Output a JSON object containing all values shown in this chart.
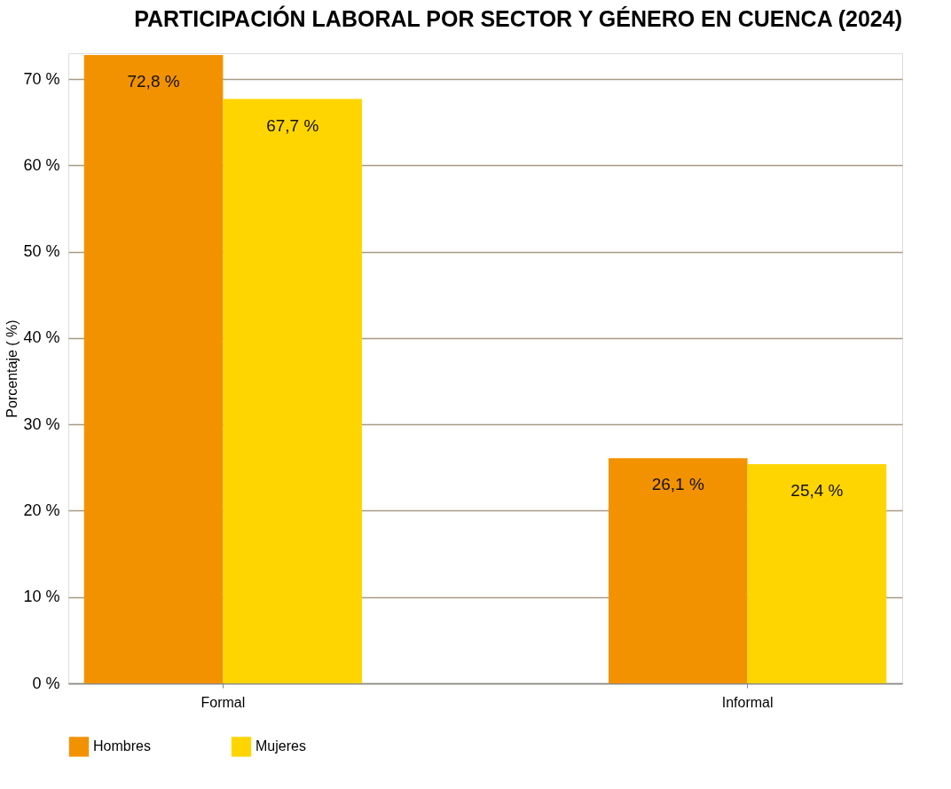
{
  "chart_data": {
    "type": "bar",
    "title": "PARTICIPACIÓN LABORAL POR SECTOR Y GÉNERO EN CUENCA (2024)",
    "ylabel": "Porcentaje ( %)",
    "categories": [
      "Formal",
      "Informal"
    ],
    "series": [
      {
        "name": "Hombres",
        "color": "#f39200",
        "values": [
          72.8,
          26.1
        ],
        "value_labels": [
          "72,8 %",
          "26,1 %"
        ]
      },
      {
        "name": "Mujeres",
        "color": "#ffd500",
        "values": [
          67.7,
          25.4
        ],
        "value_labels": [
          "67,7 %",
          "25,4 %"
        ]
      }
    ],
    "ylim": [
      0,
      73
    ],
    "yticks": [
      {
        "value": 0,
        "label": "0 %"
      },
      {
        "value": 10,
        "label": "10 %"
      },
      {
        "value": 20,
        "label": "20 %"
      },
      {
        "value": 30,
        "label": "30 %"
      },
      {
        "value": 40,
        "label": "40 %"
      },
      {
        "value": 50,
        "label": "50 %"
      },
      {
        "value": 60,
        "label": "60 %"
      },
      {
        "value": 70,
        "label": "70 %"
      }
    ],
    "grid": "y",
    "legend": "bottom"
  }
}
